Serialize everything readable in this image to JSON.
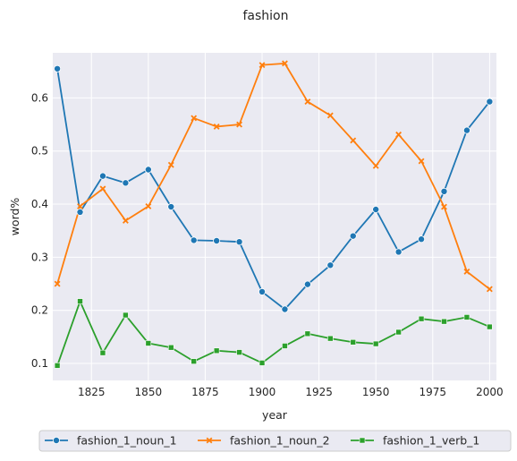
{
  "chart_data": {
    "type": "line",
    "title": "fashion",
    "xlabel": "year",
    "ylabel": "word%",
    "xlim": [
      1808,
      2003
    ],
    "ylim": [
      0.068,
      0.685
    ],
    "xticks": [
      1825,
      1850,
      1875,
      1900,
      1925,
      1950,
      1975,
      2000
    ],
    "yticks": [
      0.1,
      0.2,
      0.3,
      0.4,
      0.5,
      0.6
    ],
    "grid": true,
    "legend_position": "bottom",
    "x": [
      1810,
      1820,
      1830,
      1840,
      1850,
      1860,
      1870,
      1880,
      1890,
      1900,
      1910,
      1920,
      1930,
      1940,
      1950,
      1960,
      1970,
      1980,
      1990,
      2000
    ],
    "series": [
      {
        "name": "fashion_1_noun_1",
        "color": "#1f77b4",
        "marker": "circle",
        "values": [
          0.655,
          0.385,
          0.453,
          0.44,
          0.465,
          0.395,
          0.332,
          0.331,
          0.329,
          0.235,
          0.202,
          0.249,
          0.285,
          0.34,
          0.39,
          0.31,
          0.334,
          0.424,
          0.539,
          0.593
        ]
      },
      {
        "name": "fashion_1_noun_2",
        "color": "#ff7f0e",
        "marker": "x",
        "values": [
          0.25,
          0.396,
          0.429,
          0.369,
          0.396,
          0.474,
          0.562,
          0.546,
          0.55,
          0.662,
          0.665,
          0.593,
          0.567,
          0.52,
          0.472,
          0.531,
          0.481,
          0.395,
          0.273,
          0.24
        ]
      },
      {
        "name": "fashion_1_verb_1",
        "color": "#2ca02c",
        "marker": "square",
        "values": [
          0.096,
          0.217,
          0.12,
          0.191,
          0.138,
          0.13,
          0.104,
          0.124,
          0.121,
          0.101,
          0.133,
          0.156,
          0.147,
          0.14,
          0.137,
          0.159,
          0.184,
          0.179,
          0.187,
          0.169
        ]
      }
    ]
  }
}
